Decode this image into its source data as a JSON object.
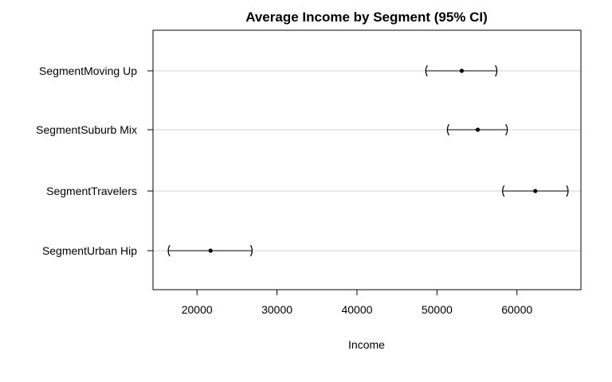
{
  "chart_data": {
    "type": "scatter",
    "title": "Average Income by Segment (95% CI)",
    "xlabel": "Income",
    "ylabel": "",
    "xlim": [
      14500,
      68000
    ],
    "xticks": [
      20000,
      30000,
      40000,
      50000,
      60000
    ],
    "grid": "horizontal",
    "categories": [
      "SegmentMoving Up",
      "SegmentSuburb Mix",
      "SegmentTravelers",
      "SegmentUrban Hip"
    ],
    "estimates": [
      53100,
      55100,
      62300,
      21700
    ],
    "lower": [
      48600,
      51300,
      58200,
      16400
    ],
    "upper": [
      57500,
      58800,
      66400,
      26900
    ]
  }
}
